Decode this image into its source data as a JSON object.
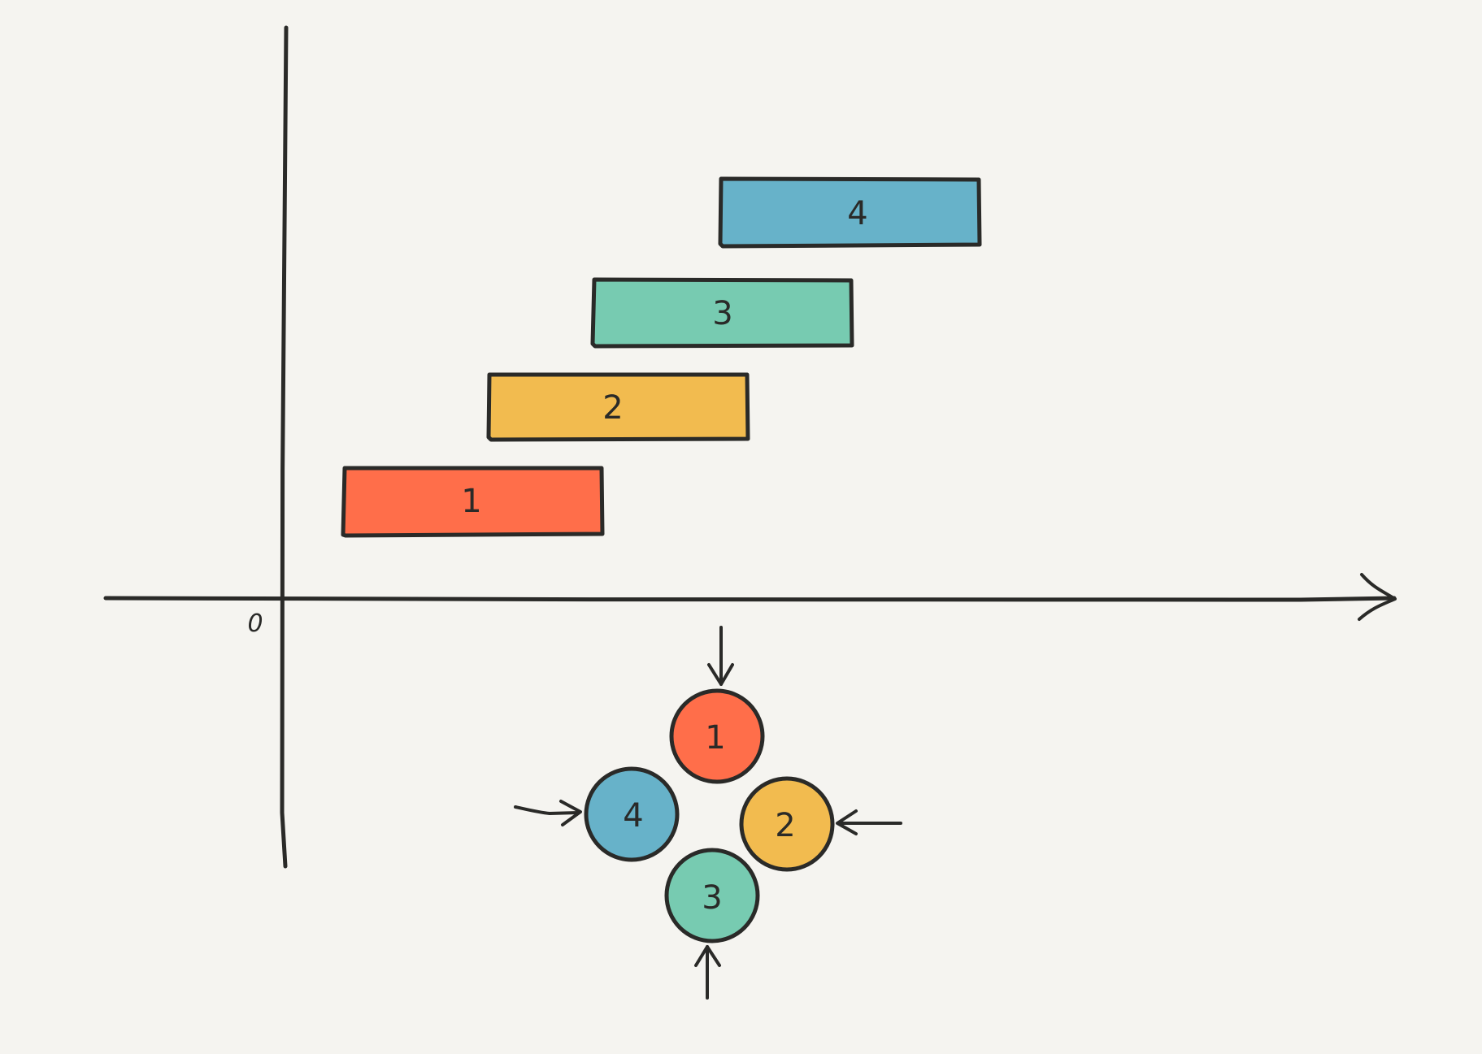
{
  "diagram": {
    "origin_label": "0",
    "bars": [
      {
        "label": "1",
        "color": "#ff6e4a"
      },
      {
        "label": "2",
        "color": "#f2bb4f"
      },
      {
        "label": "3",
        "color": "#77cbb1"
      },
      {
        "label": "4",
        "color": "#67b2c9"
      }
    ],
    "circles": [
      {
        "label": "1",
        "color": "#ff6e4a"
      },
      {
        "label": "2",
        "color": "#f2bb4f"
      },
      {
        "label": "3",
        "color": "#77cbb1"
      },
      {
        "label": "4",
        "color": "#67b2c9"
      }
    ],
    "stroke_color": "#2a2a28",
    "background_color": "#f5f4f0"
  }
}
